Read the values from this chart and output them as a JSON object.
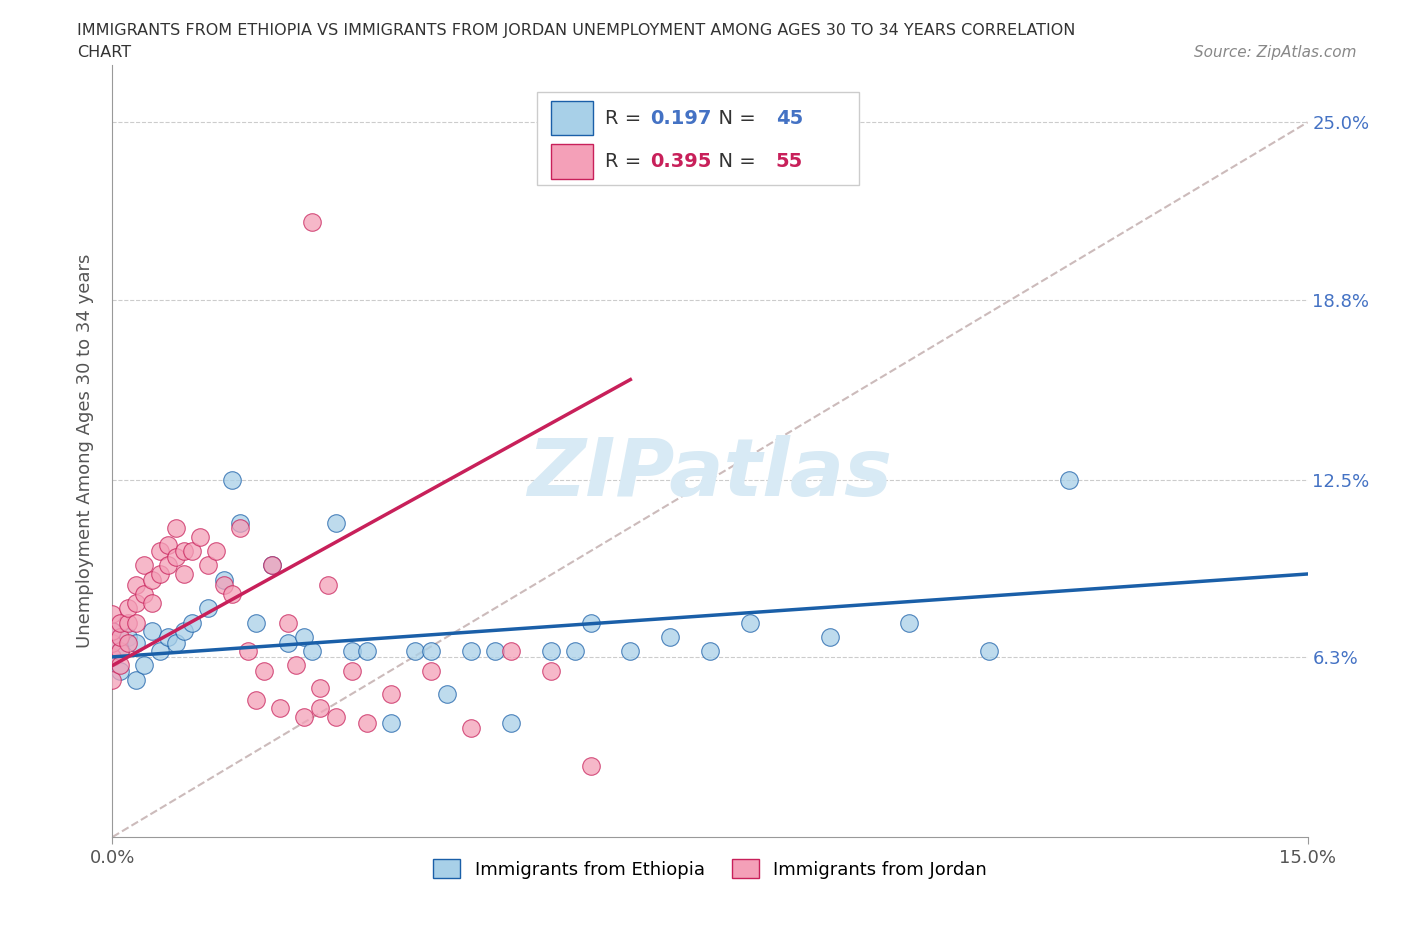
{
  "title_line1": "IMMIGRANTS FROM ETHIOPIA VS IMMIGRANTS FROM JORDAN UNEMPLOYMENT AMONG AGES 30 TO 34 YEARS CORRELATION",
  "title_line2": "CHART",
  "source_text": "Source: ZipAtlas.com",
  "ylabel": "Unemployment Among Ages 30 to 34 years",
  "xlim": [
    0.0,
    0.15
  ],
  "ylim": [
    0.0,
    0.27
  ],
  "yticks": [
    0.0,
    0.063,
    0.125,
    0.188,
    0.25
  ],
  "ytick_labels": [
    "",
    "6.3%",
    "12.5%",
    "18.8%",
    "25.0%"
  ],
  "xticks": [
    0.0,
    0.15
  ],
  "xtick_labels": [
    "0.0%",
    "15.0%"
  ],
  "ethiopia_color": "#a8d0e8",
  "jordan_color": "#f4a0b8",
  "ethiopia_R": 0.197,
  "ethiopia_N": 45,
  "jordan_R": 0.395,
  "jordan_N": 55,
  "trendline_color_ethiopia": "#1a5fa8",
  "trendline_color_jordan": "#c8205a",
  "diagonal_color": "#ccbbbb",
  "watermark_color": "#d8eaf5",
  "background_color": "#ffffff",
  "ethiopia_scatter_x": [
    0.0,
    0.0,
    0.0,
    0.001,
    0.001,
    0.002,
    0.003,
    0.003,
    0.004,
    0.005,
    0.006,
    0.007,
    0.008,
    0.009,
    0.01,
    0.012,
    0.014,
    0.015,
    0.016,
    0.018,
    0.02,
    0.022,
    0.024,
    0.025,
    0.028,
    0.03,
    0.032,
    0.035,
    0.038,
    0.04,
    0.042,
    0.045,
    0.048,
    0.05,
    0.055,
    0.058,
    0.06,
    0.065,
    0.07,
    0.075,
    0.08,
    0.09,
    0.1,
    0.11,
    0.12
  ],
  "ethiopia_scatter_y": [
    0.063,
    0.068,
    0.072,
    0.065,
    0.058,
    0.07,
    0.068,
    0.055,
    0.06,
    0.072,
    0.065,
    0.07,
    0.068,
    0.072,
    0.075,
    0.08,
    0.09,
    0.125,
    0.11,
    0.075,
    0.095,
    0.068,
    0.07,
    0.065,
    0.11,
    0.065,
    0.065,
    0.04,
    0.065,
    0.065,
    0.05,
    0.065,
    0.065,
    0.04,
    0.065,
    0.065,
    0.075,
    0.065,
    0.07,
    0.065,
    0.075,
    0.07,
    0.075,
    0.065,
    0.125
  ],
  "jordan_scatter_x": [
    0.0,
    0.0,
    0.0,
    0.0,
    0.0,
    0.001,
    0.001,
    0.001,
    0.001,
    0.002,
    0.002,
    0.002,
    0.003,
    0.003,
    0.003,
    0.004,
    0.004,
    0.005,
    0.005,
    0.006,
    0.006,
    0.007,
    0.007,
    0.008,
    0.008,
    0.009,
    0.009,
    0.01,
    0.011,
    0.012,
    0.013,
    0.014,
    0.015,
    0.016,
    0.017,
    0.018,
    0.019,
    0.02,
    0.021,
    0.022,
    0.023,
    0.024,
    0.025,
    0.026,
    0.026,
    0.027,
    0.028,
    0.03,
    0.032,
    0.035,
    0.04,
    0.045,
    0.05,
    0.055,
    0.06
  ],
  "jordan_scatter_y": [
    0.063,
    0.068,
    0.072,
    0.078,
    0.055,
    0.065,
    0.07,
    0.075,
    0.06,
    0.068,
    0.075,
    0.08,
    0.075,
    0.082,
    0.088,
    0.085,
    0.095,
    0.082,
    0.09,
    0.092,
    0.1,
    0.095,
    0.102,
    0.098,
    0.108,
    0.092,
    0.1,
    0.1,
    0.105,
    0.095,
    0.1,
    0.088,
    0.085,
    0.108,
    0.065,
    0.048,
    0.058,
    0.095,
    0.045,
    0.075,
    0.06,
    0.042,
    0.215,
    0.052,
    0.045,
    0.088,
    0.042,
    0.058,
    0.04,
    0.05,
    0.058,
    0.038,
    0.065,
    0.058,
    0.025
  ]
}
